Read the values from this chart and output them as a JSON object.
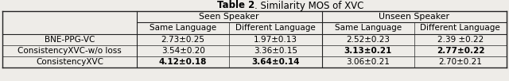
{
  "title_bold": "Table 2",
  "title_normal": ". Similarity MOS of XVC",
  "col_groups": [
    {
      "label": "Seen Speaker",
      "span": [
        1,
        2
      ]
    },
    {
      "label": "Unseen Speaker",
      "span": [
        3,
        4
      ]
    }
  ],
  "col_headers": [
    "Same Language",
    "Different Language",
    "Same Language",
    "Different Language"
  ],
  "row_labels": [
    "BNE-PPG-VC",
    "ConsistencyXVC-w/o loss",
    "ConsistencyXVC"
  ],
  "data": [
    [
      "2.73±0.25",
      "1.97±0.13",
      "2.52±0.23",
      "2.39 ±0.22"
    ],
    [
      "3.54±0.20",
      "3.36±0.15",
      "3.13±0.21",
      "2.77±0.22"
    ],
    [
      "4.12±0.18",
      "3.64±0.14",
      "3.06±0.21",
      "2.70±0.21"
    ]
  ],
  "bold_cells": [
    [
      false,
      false,
      false,
      false
    ],
    [
      false,
      false,
      true,
      true
    ],
    [
      true,
      true,
      false,
      false
    ]
  ],
  "background_color": "#eeece8",
  "line_color": "#222222",
  "font_size": 7.8,
  "title_font_size": 8.5
}
